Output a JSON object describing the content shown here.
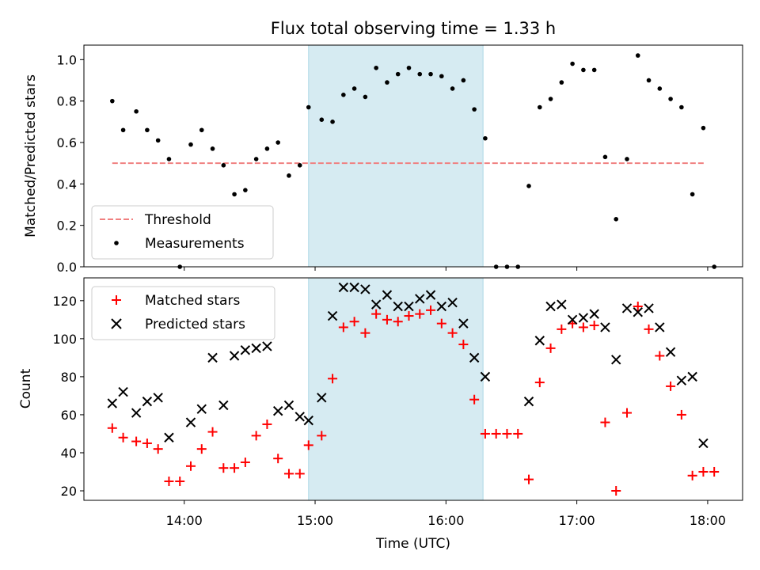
{
  "chart_data": [
    {
      "type": "scatter",
      "title": "Flux total observing time = 1.33 h",
      "xlabel": "",
      "ylabel": "Matched/Predicted stars",
      "xlim": [
        "13:14",
        "18:16"
      ],
      "ylim": [
        0,
        1.07
      ],
      "yticks": [
        0.0,
        0.2,
        0.4,
        0.6,
        0.8,
        1.0
      ],
      "ytick_labels": [
        "0.0",
        "0.2",
        "0.4",
        "0.6",
        "0.8",
        "1.0"
      ],
      "highlight_span": [
        "14:57",
        "16:17"
      ],
      "legend": {
        "placement": "lower left",
        "entries": [
          "Threshold",
          "Measurements"
        ]
      },
      "series": [
        {
          "name": "Threshold",
          "kind": "dashed-line",
          "color": "#f08080",
          "x": [
            "13:27",
            "17:59"
          ],
          "y": [
            0.5,
            0.5
          ]
        },
        {
          "name": "Measurements",
          "kind": "dot",
          "color": "#000000",
          "x": [
            "13:27",
            "13:32",
            "13:38",
            "13:43",
            "13:48",
            "13:53",
            "13:58",
            "14:03",
            "14:08",
            "14:13",
            "14:18",
            "14:23",
            "14:28",
            "14:33",
            "14:38",
            "14:43",
            "14:48",
            "14:53",
            "14:57",
            "15:03",
            "15:08",
            "15:13",
            "15:18",
            "15:23",
            "15:28",
            "15:33",
            "15:38",
            "15:43",
            "15:48",
            "15:53",
            "15:58",
            "16:03",
            "16:08",
            "16:13",
            "16:18",
            "16:23",
            "16:28",
            "16:33",
            "16:38",
            "16:43",
            "16:48",
            "16:53",
            "16:58",
            "17:03",
            "17:08",
            "17:13",
            "17:18",
            "17:23",
            "17:28",
            "17:33",
            "17:38",
            "17:43",
            "17:48",
            "17:53",
            "17:58",
            "18:03"
          ],
          "y": [
            0.8,
            0.66,
            0.75,
            0.66,
            0.61,
            0.52,
            0.0,
            0.59,
            0.66,
            0.57,
            0.49,
            0.35,
            0.37,
            0.52,
            0.57,
            0.6,
            0.44,
            0.49,
            0.77,
            0.71,
            0.7,
            0.83,
            0.86,
            0.82,
            0.96,
            0.89,
            0.93,
            0.96,
            0.93,
            0.93,
            0.92,
            0.86,
            0.9,
            0.76,
            0.62,
            0.0,
            0.0,
            0.0,
            0.39,
            0.77,
            0.81,
            0.89,
            0.98,
            0.95,
            0.95,
            0.53,
            0.23,
            0.52,
            1.02,
            0.9,
            0.86,
            0.81,
            0.77,
            0.35,
            0.67,
            0.0
          ]
        }
      ]
    },
    {
      "type": "scatter",
      "title": "",
      "xlabel": "Time (UTC)",
      "ylabel": "Count",
      "xlim": [
        "13:14",
        "18:16"
      ],
      "ylim": [
        15,
        132
      ],
      "xticks": [
        "14:00",
        "15:00",
        "16:00",
        "17:00",
        "18:00"
      ],
      "yticks": [
        20,
        40,
        60,
        80,
        100,
        120
      ],
      "ytick_labels": [
        "20",
        "40",
        "60",
        "80",
        "100",
        "120"
      ],
      "highlight_span": [
        "14:57",
        "16:17"
      ],
      "legend": {
        "placement": "upper left",
        "entries": [
          "Matched stars",
          "Predicted stars"
        ]
      },
      "series": [
        {
          "name": "Matched stars",
          "marker": "+",
          "color": "#ff0000",
          "x": [
            "13:27",
            "13:32",
            "13:38",
            "13:43",
            "13:48",
            "13:53",
            "13:58",
            "14:03",
            "14:08",
            "14:13",
            "14:18",
            "14:23",
            "14:28",
            "14:33",
            "14:38",
            "14:43",
            "14:48",
            "14:53",
            "14:57",
            "15:03",
            "15:08",
            "15:13",
            "15:18",
            "15:23",
            "15:28",
            "15:33",
            "15:38",
            "15:43",
            "15:48",
            "15:53",
            "15:58",
            "16:03",
            "16:08",
            "16:13",
            "16:18",
            "16:23",
            "16:28",
            "16:33",
            "16:38",
            "16:43",
            "16:48",
            "16:53",
            "16:58",
            "17:03",
            "17:08",
            "17:13",
            "17:18",
            "17:23",
            "17:28",
            "17:33",
            "17:38",
            "17:43",
            "17:48",
            "17:53",
            "17:58",
            "18:03"
          ],
          "y": [
            53,
            48,
            46,
            45,
            42,
            25,
            25,
            33,
            42,
            51,
            32,
            32,
            35,
            49,
            55,
            37,
            29,
            29,
            44,
            49,
            79,
            106,
            109,
            103,
            113,
            110,
            109,
            112,
            113,
            115,
            108,
            103,
            97,
            68,
            50,
            50,
            50,
            50,
            26,
            77,
            95,
            105,
            108,
            106,
            107,
            56,
            20,
            61,
            117,
            105,
            91,
            75,
            60,
            28,
            30,
            30
          ]
        },
        {
          "name": "Predicted stars",
          "marker": "x",
          "color": "#000000",
          "x": [
            "13:27",
            "13:32",
            "13:38",
            "13:43",
            "13:48",
            "13:53",
            "14:03",
            "14:08",
            "14:13",
            "14:18",
            "14:23",
            "14:28",
            "14:33",
            "14:38",
            "14:43",
            "14:48",
            "14:53",
            "14:57",
            "15:03",
            "15:08",
            "15:13",
            "15:18",
            "15:23",
            "15:28",
            "15:33",
            "15:38",
            "15:43",
            "15:48",
            "15:53",
            "15:58",
            "16:03",
            "16:08",
            "16:13",
            "16:18",
            "16:38",
            "16:43",
            "16:48",
            "16:53",
            "16:58",
            "17:03",
            "17:08",
            "17:13",
            "17:18",
            "17:23",
            "17:28",
            "17:33",
            "17:38",
            "17:43",
            "17:48",
            "17:53",
            "17:58"
          ],
          "y": [
            66,
            72,
            61,
            67,
            69,
            48,
            56,
            63,
            90,
            65,
            91,
            94,
            95,
            96,
            62,
            65,
            59,
            57,
            69,
            112,
            127,
            127,
            126,
            118,
            123,
            117,
            117,
            121,
            123,
            117,
            119,
            108,
            90,
            80,
            67,
            99,
            117,
            118,
            110,
            111,
            113,
            106,
            89,
            116,
            114,
            116,
            106,
            93,
            78,
            80,
            45
          ]
        }
      ]
    }
  ],
  "colors": {
    "highlight": "#add8e6"
  },
  "labels": {
    "title": "Flux total observing time = 1.33 h",
    "top_ylabel": "Matched/Predicted stars",
    "bottom_ylabel": "Count",
    "xlabel": "Time (UTC)",
    "legend_threshold": "Threshold",
    "legend_measurements": "Measurements",
    "legend_matched": "Matched stars",
    "legend_predicted": "Predicted stars"
  }
}
